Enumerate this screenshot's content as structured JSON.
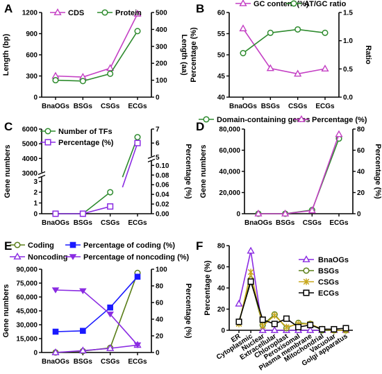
{
  "colors": {
    "magenta": "#c43fc4",
    "green": "#2e8b2e",
    "blue": "#1a1aff",
    "violet": "#8a2be2",
    "olive": "#5b7f1a",
    "gold": "#c8a81e",
    "black": "#000000"
  },
  "chart_data": [
    {
      "id": "A",
      "type": "line",
      "label": "A",
      "categories": [
        "BnaOGs",
        "BSGs",
        "CSGs",
        "ECGs"
      ],
      "series": [
        {
          "name": "CDS",
          "axis": "left",
          "values": [
            300,
            285,
            410,
            1180
          ],
          "color": "magenta",
          "marker": "triangle"
        },
        {
          "name": "Protein",
          "axis": "right",
          "values": [
            100,
            95,
            138,
            390
          ],
          "color": "green",
          "marker": "circle"
        }
      ],
      "ylabel": "Length (bp)",
      "ylim": [
        0,
        1200
      ],
      "yticks": [
        0,
        300,
        600,
        900,
        1200
      ],
      "y2label": "Length (aa)",
      "y2lim": [
        0,
        500
      ],
      "y2ticks": [
        0,
        100,
        200,
        300,
        400,
        500
      ]
    },
    {
      "id": "B",
      "type": "line",
      "label": "B",
      "categories": [
        "BnaOGs",
        "BSGs",
        "CSGs",
        "ECGs"
      ],
      "series": [
        {
          "name": "GC content (%)",
          "axis": "left",
          "values": [
            56.2,
            46.8,
            45.5,
            46.7
          ],
          "color": "magenta",
          "marker": "triangle"
        },
        {
          "name": "AT/GC ratio",
          "axis": "right",
          "values": [
            0.78,
            1.14,
            1.2,
            1.14
          ],
          "color": "green",
          "marker": "circle"
        }
      ],
      "ylabel": "Percentage (%)",
      "ylim": [
        40,
        60
      ],
      "yticks": [
        40,
        45,
        50,
        55,
        60
      ],
      "y2label": "Ratio",
      "y2lim": [
        0,
        1.5
      ],
      "y2ticks": [
        "0.0",
        "0.5",
        "1.0",
        "1.5"
      ]
    },
    {
      "id": "C",
      "type": "line",
      "label": "C",
      "categories": [
        "BnaOGs",
        "BSGs",
        "CSGs",
        "ECGs"
      ],
      "series": [
        {
          "name": "Number of TFs",
          "axis": "left",
          "values": [
            0,
            0,
            2,
            5450
          ],
          "color": "green",
          "marker": "circle"
        },
        {
          "name": "Percentage (%)",
          "axis": "right",
          "values": [
            0,
            0,
            0.015,
            6.0
          ],
          "color": "violet",
          "marker": "square"
        }
      ],
      "ylabel": "Gene numbers",
      "yticks": [
        "0",
        "1",
        "2",
        "3",
        "3000",
        "4000",
        "5000",
        "6000"
      ],
      "y2label": "Percentage (%)",
      "y2ticks": [
        "0.00",
        "0.02",
        "0.04",
        "0.06",
        "0.08",
        "0.10",
        "5",
        "6",
        "7"
      ]
    },
    {
      "id": "D",
      "type": "line",
      "label": "D",
      "categories": [
        "BnaOGs",
        "BSGs",
        "CSGs",
        "ECGs"
      ],
      "series": [
        {
          "name": "Domain-containing genes",
          "axis": "left",
          "values": [
            0,
            0,
            3500,
            71000
          ],
          "color": "green",
          "marker": "circle"
        },
        {
          "name": "Percentage (%)",
          "axis": "right",
          "values": [
            0,
            0,
            3,
            75
          ],
          "color": "magenta",
          "marker": "triangle"
        }
      ],
      "ylabel": "Gene numbers",
      "ylim": [
        0,
        80000
      ],
      "yticks": [
        "0",
        "20,000",
        "40,000",
        "60,000",
        "80,000"
      ],
      "y2label": "Percentage (%)",
      "y2lim": [
        0,
        80
      ],
      "y2ticks": [
        0,
        20,
        40,
        60,
        80
      ]
    },
    {
      "id": "E",
      "type": "line",
      "label": "E",
      "categories": [
        "BnaOGs",
        "BSGs",
        "CSGs",
        "ECGs"
      ],
      "series": [
        {
          "name": "Coding",
          "axis": "left",
          "values": [
            0,
            1500,
            5000,
            86000
          ],
          "color": "olive",
          "marker": "circle"
        },
        {
          "name": "Noncoding",
          "axis": "left",
          "values": [
            0,
            2000,
            4500,
            8000
          ],
          "color": "violet",
          "marker": "triangle-open"
        },
        {
          "name": "Percentage of coding (%)",
          "axis": "right",
          "values": [
            25,
            26,
            54,
            91
          ],
          "color": "blue",
          "marker": "square-filled"
        },
        {
          "name": "Percentage of noncoding (%)",
          "axis": "right",
          "values": [
            75,
            74,
            46,
            9
          ],
          "color": "violet",
          "marker": "triangle-down"
        }
      ],
      "ylabel": "Gene numbers",
      "ylim": [
        0,
        90000
      ],
      "yticks": [
        "0",
        "15,000",
        "30,000",
        "45,000",
        "60,000",
        "75,000",
        "90,000"
      ],
      "y2label": "Percentage (%)",
      "y2lim": [
        0,
        100
      ],
      "y2ticks": [
        0,
        20,
        40,
        60,
        80,
        100
      ]
    },
    {
      "id": "F",
      "type": "line",
      "label": "F",
      "categories": [
        "ER",
        "Cytoplasmic",
        "Nuclear",
        "Extracellular",
        "Chloroplast",
        "Peroxisomal",
        "Plasma membrane",
        "Mitochondrial",
        "Vacuolar",
        "Golgi apparatus"
      ],
      "series": [
        {
          "name": "BnaOGs",
          "values": [
            25,
            75,
            0,
            0,
            0,
            0,
            0,
            0,
            0,
            0
          ],
          "color": "violet",
          "marker": "triangle"
        },
        {
          "name": "BSGs",
          "values": [
            8,
            48,
            5,
            15,
            2,
            7,
            6,
            0,
            0,
            0
          ],
          "color": "olive",
          "marker": "circle"
        },
        {
          "name": "CSGs",
          "values": [
            6,
            55,
            4,
            14,
            3,
            6,
            6,
            1,
            0,
            0
          ],
          "color": "gold",
          "marker": "x"
        },
        {
          "name": "ECGs",
          "values": [
            8,
            46,
            10,
            6,
            11,
            3,
            5,
            1,
            1,
            2
          ],
          "color": "black",
          "marker": "square"
        }
      ],
      "ylabel": "Percentage (%)",
      "ylim": [
        0,
        80
      ],
      "yticks": [
        0,
        20,
        40,
        60,
        80
      ]
    }
  ]
}
